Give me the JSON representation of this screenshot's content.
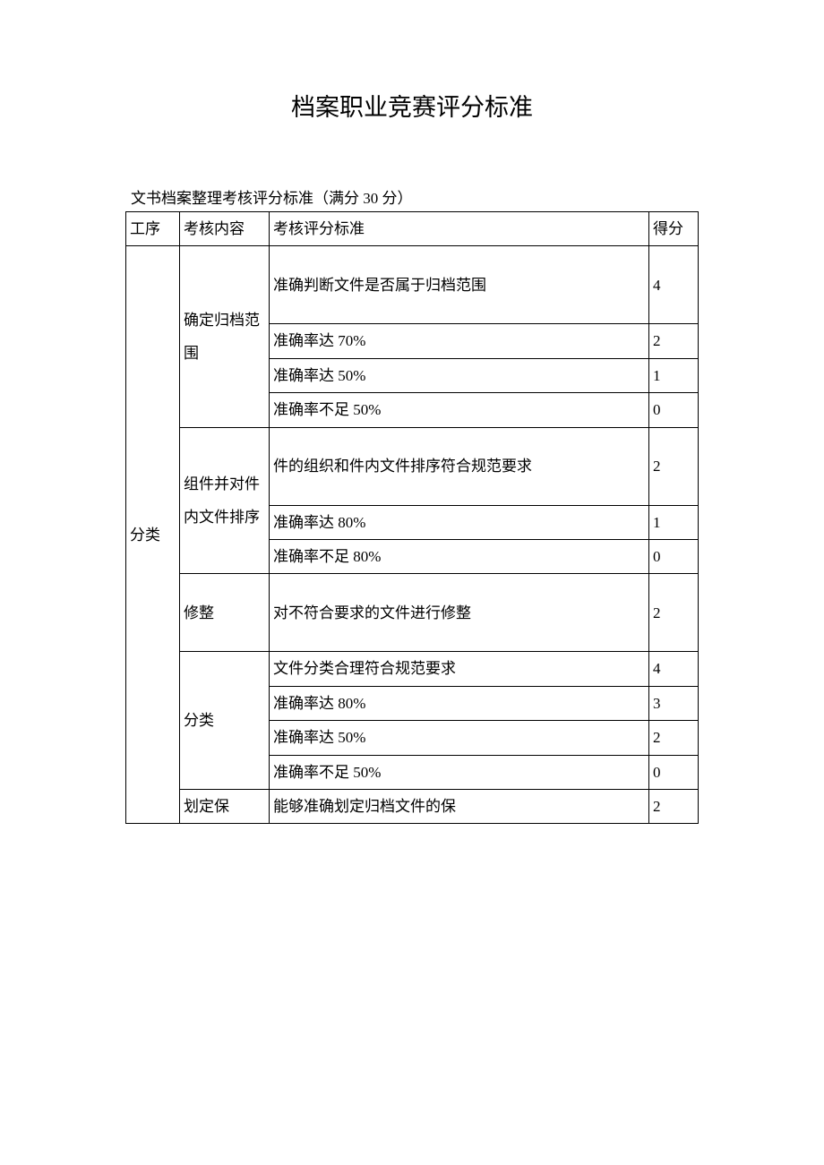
{
  "title": "档案职业竞赛评分标准",
  "subtitle": "文书档案整理考核评分标准（满分 30 分）",
  "header": {
    "col1": "工序",
    "col2": "考核内容",
    "col3": "考核评分标准",
    "col4": "得分"
  },
  "category": "分类",
  "sections": [
    {
      "name": "确定归档范围",
      "rows": [
        {
          "criteria": "准确判断文件是否属于归档范围",
          "score": "4",
          "tall": true
        },
        {
          "criteria": "准确率达 70%",
          "score": "2"
        },
        {
          "criteria": "准确率达 50%",
          "score": "1"
        },
        {
          "criteria": "准确率不足 50%",
          "score": "0"
        }
      ]
    },
    {
      "name": "组件并对件内文件排序",
      "rows": [
        {
          "criteria": "件的组织和件内文件排序符合规范要求",
          "score": "2",
          "tall": true
        },
        {
          "criteria": "准确率达 80%",
          "score": "1"
        },
        {
          "criteria": "准确率不足 80%",
          "score": "0"
        }
      ]
    },
    {
      "name": "修整",
      "rows": [
        {
          "criteria": "对不符合要求的文件进行修整",
          "score": "2",
          "tall": true
        }
      ]
    },
    {
      "name": "分类",
      "rows": [
        {
          "criteria": "文件分类合理符合规范要求",
          "score": "4"
        },
        {
          "criteria": "准确率达 80%",
          "score": "3"
        },
        {
          "criteria": "准确率达 50%",
          "score": "2"
        },
        {
          "criteria": "准确率不足 50%",
          "score": "0"
        }
      ]
    },
    {
      "name": "划定保",
      "rows": [
        {
          "criteria": "能够准确划定归档文件的保",
          "score": "2"
        }
      ]
    }
  ]
}
